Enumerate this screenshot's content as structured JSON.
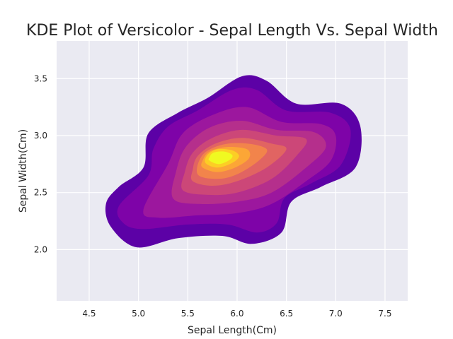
{
  "chart_data": {
    "type": "kde-contour",
    "title": "KDE Plot of Versicolor - Sepal Length Vs. Sepal Width",
    "xlabel": "Sepal Length(Cm)",
    "ylabel": "Sepal Width(Cm)",
    "xlim": [
      4.17,
      7.73
    ],
    "ylim": [
      1.55,
      3.83
    ],
    "xticks": [
      4.5,
      5.0,
      5.5,
      6.0,
      6.5,
      7.0,
      7.5
    ],
    "xtick_labels": [
      "4.5",
      "5.0",
      "5.5",
      "6.0",
      "6.5",
      "7.0",
      "7.5"
    ],
    "yticks": [
      2.0,
      2.5,
      3.0,
      3.5
    ],
    "ytick_labels": [
      "2.0",
      "2.5",
      "3.0",
      "3.5"
    ],
    "grid": true,
    "legend": false,
    "colormap": "plasma",
    "background": "#eaeaf2",
    "density_peak": [
      5.8,
      2.82
    ],
    "levels": [
      {
        "level": 1,
        "color": "#5c01a6",
        "outline": [
          [
            4.67,
            2.4
          ],
          [
            4.72,
            2.2
          ],
          [
            4.98,
            2.02
          ],
          [
            5.4,
            2.1
          ],
          [
            5.85,
            2.12
          ],
          [
            6.15,
            2.05
          ],
          [
            6.45,
            2.15
          ],
          [
            6.55,
            2.42
          ],
          [
            6.85,
            2.55
          ],
          [
            7.2,
            2.72
          ],
          [
            7.25,
            3.08
          ],
          [
            7.05,
            3.28
          ],
          [
            6.6,
            3.28
          ],
          [
            6.3,
            3.48
          ],
          [
            6.05,
            3.52
          ],
          [
            5.7,
            3.33
          ],
          [
            5.4,
            3.2
          ],
          [
            5.1,
            3.02
          ],
          [
            5.05,
            2.72
          ],
          [
            4.8,
            2.55
          ]
        ]
      },
      {
        "level": 2,
        "color": "#7e03a8",
        "outline": [
          [
            4.8,
            2.38
          ],
          [
            4.85,
            2.23
          ],
          [
            5.05,
            2.18
          ],
          [
            5.5,
            2.22
          ],
          [
            5.9,
            2.22
          ],
          [
            6.2,
            2.15
          ],
          [
            6.4,
            2.23
          ],
          [
            6.48,
            2.45
          ],
          [
            6.75,
            2.58
          ],
          [
            7.05,
            2.74
          ],
          [
            7.15,
            3.05
          ],
          [
            6.95,
            3.2
          ],
          [
            6.5,
            3.22
          ],
          [
            6.2,
            3.4
          ],
          [
            5.95,
            3.4
          ],
          [
            5.6,
            3.22
          ],
          [
            5.3,
            3.08
          ],
          [
            5.15,
            2.88
          ],
          [
            5.1,
            2.65
          ]
        ]
      },
      {
        "level": 3,
        "color": "#9c179e",
        "outline": [
          [
            5.05,
            2.35
          ],
          [
            5.2,
            2.28
          ],
          [
            5.6,
            2.3
          ],
          [
            6.0,
            2.32
          ],
          [
            6.35,
            2.4
          ],
          [
            6.7,
            2.6
          ],
          [
            6.95,
            2.78
          ],
          [
            7.0,
            3.0
          ],
          [
            6.85,
            3.1
          ],
          [
            6.45,
            3.12
          ],
          [
            6.1,
            3.25
          ],
          [
            5.75,
            3.18
          ],
          [
            5.45,
            3.02
          ],
          [
            5.3,
            2.75
          ]
        ]
      },
      {
        "level": 4,
        "color": "#b52f8c",
        "outline": [
          [
            5.35,
            2.45
          ],
          [
            5.6,
            2.4
          ],
          [
            6.0,
            2.42
          ],
          [
            6.35,
            2.5
          ],
          [
            6.7,
            2.72
          ],
          [
            6.9,
            2.9
          ],
          [
            6.78,
            3.03
          ],
          [
            6.4,
            3.05
          ],
          [
            6.05,
            3.13
          ],
          [
            5.72,
            3.07
          ],
          [
            5.48,
            2.9
          ],
          [
            5.38,
            2.68
          ]
        ]
      },
      {
        "level": 5,
        "color": "#cc4778",
        "outline": [
          [
            5.45,
            2.52
          ],
          [
            5.7,
            2.48
          ],
          [
            6.0,
            2.5
          ],
          [
            6.35,
            2.62
          ],
          [
            6.6,
            2.82
          ],
          [
            6.7,
            2.97
          ],
          [
            6.4,
            3.0
          ],
          [
            6.05,
            3.05
          ],
          [
            5.75,
            2.98
          ],
          [
            5.55,
            2.85
          ],
          [
            5.47,
            2.68
          ]
        ]
      },
      {
        "level": 6,
        "color": "#e16462",
        "outline": [
          [
            5.55,
            2.6
          ],
          [
            5.75,
            2.56
          ],
          [
            6.0,
            2.6
          ],
          [
            6.3,
            2.72
          ],
          [
            6.5,
            2.88
          ],
          [
            6.35,
            2.93
          ],
          [
            6.05,
            2.98
          ],
          [
            5.78,
            2.93
          ],
          [
            5.6,
            2.82
          ],
          [
            5.55,
            2.7
          ]
        ]
      },
      {
        "level": 7,
        "color": "#f2844b",
        "outline": [
          [
            5.6,
            2.66
          ],
          [
            5.8,
            2.62
          ],
          [
            6.0,
            2.66
          ],
          [
            6.22,
            2.78
          ],
          [
            6.3,
            2.88
          ],
          [
            6.1,
            2.93
          ],
          [
            5.85,
            2.92
          ],
          [
            5.65,
            2.83
          ]
        ]
      },
      {
        "level": 8,
        "color": "#fca636",
        "outline": [
          [
            5.65,
            2.72
          ],
          [
            5.8,
            2.68
          ],
          [
            5.98,
            2.72
          ],
          [
            6.12,
            2.8
          ],
          [
            6.1,
            2.88
          ],
          [
            5.9,
            2.9
          ],
          [
            5.72,
            2.86
          ],
          [
            5.65,
            2.78
          ]
        ]
      },
      {
        "level": 9,
        "color": "#fcce25",
        "outline": [
          [
            5.68,
            2.76
          ],
          [
            5.8,
            2.72
          ],
          [
            5.95,
            2.76
          ],
          [
            6.02,
            2.82
          ],
          [
            5.95,
            2.87
          ],
          [
            5.8,
            2.88
          ],
          [
            5.7,
            2.83
          ]
        ]
      },
      {
        "level": 10,
        "color": "#f0f921",
        "outline": [
          [
            5.72,
            2.78
          ],
          [
            5.82,
            2.75
          ],
          [
            5.93,
            2.79
          ],
          [
            5.95,
            2.83
          ],
          [
            5.87,
            2.86
          ],
          [
            5.76,
            2.85
          ],
          [
            5.72,
            2.81
          ]
        ]
      }
    ]
  }
}
